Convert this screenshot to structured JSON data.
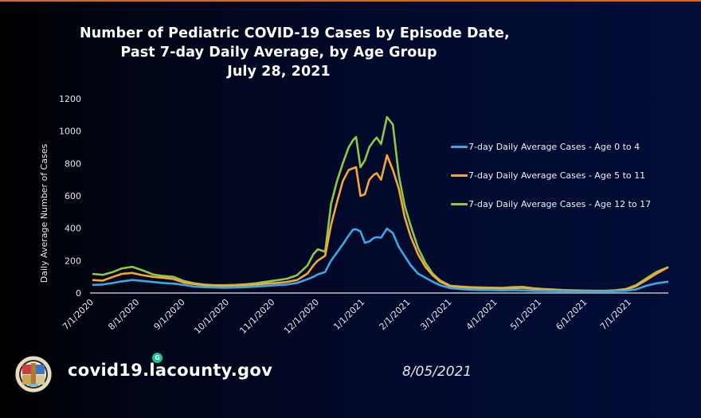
{
  "slide": {
    "footer_url": "covid19.lacounty.gov",
    "footer_date": "8/05/2021",
    "badge_letter": "G",
    "logo": "la-county-seal-icon"
  },
  "colors": {
    "age_0_4": "#3aa8e8",
    "age_5_11": "#f4a636",
    "age_12_17": "#8fc74a",
    "accent_rule": "#d2692a"
  },
  "chart_data": {
    "type": "line",
    "title": [
      "Number of Pediatric COVID-19 Cases by Episode Date,",
      "Past 7-day Daily Average, by Age Group",
      "July 28, 2021"
    ],
    "xlabel": "",
    "ylabel": "Daily Average Number of Cases",
    "ylim": [
      0,
      1200
    ],
    "yticks": [
      0,
      200,
      400,
      600,
      800,
      1000,
      1200
    ],
    "xlim": [
      "2020-07-01",
      "2021-07-27"
    ],
    "xticks": [
      {
        "date": "2020-07-01",
        "label": "7/1/2020"
      },
      {
        "date": "2020-08-01",
        "label": "8/1/2020"
      },
      {
        "date": "2020-09-01",
        "label": "9/1/2020"
      },
      {
        "date": "2020-10-01",
        "label": "10/1/2020"
      },
      {
        "date": "2020-11-01",
        "label": "11/1/2020"
      },
      {
        "date": "2020-12-01",
        "label": "12/1/2020"
      },
      {
        "date": "2021-01-01",
        "label": "1/1/2021"
      },
      {
        "date": "2021-02-01",
        "label": "2/1/2021"
      },
      {
        "date": "2021-03-01",
        "label": "3/1/2021"
      },
      {
        "date": "2021-04-01",
        "label": "4/1/2021"
      },
      {
        "date": "2021-05-01",
        "label": "5/1/2021"
      },
      {
        "date": "2021-06-01",
        "label": "6/1/2021"
      },
      {
        "date": "2021-07-01",
        "label": "7/1/2021"
      }
    ],
    "grid": false,
    "legend_position": "right",
    "x": [
      "2020-07-01",
      "2020-07-08",
      "2020-07-15",
      "2020-07-21",
      "2020-07-28",
      "2020-08-04",
      "2020-08-11",
      "2020-08-18",
      "2020-08-25",
      "2020-09-01",
      "2020-09-08",
      "2020-09-15",
      "2020-09-22",
      "2020-09-29",
      "2020-10-06",
      "2020-10-13",
      "2020-10-20",
      "2020-10-27",
      "2020-11-03",
      "2020-11-10",
      "2020-11-17",
      "2020-11-24",
      "2020-11-28",
      "2020-12-01",
      "2020-12-06",
      "2020-12-10",
      "2020-12-14",
      "2020-12-18",
      "2020-12-22",
      "2020-12-25",
      "2020-12-27",
      "2020-12-30",
      "2021-01-02",
      "2021-01-05",
      "2021-01-08",
      "2021-01-10",
      "2021-01-13",
      "2021-01-17",
      "2021-01-21",
      "2021-01-25",
      "2021-01-29",
      "2021-02-02",
      "2021-02-07",
      "2021-02-12",
      "2021-02-17",
      "2021-02-22",
      "2021-03-01",
      "2021-03-08",
      "2021-03-15",
      "2021-03-22",
      "2021-03-29",
      "2021-04-05",
      "2021-04-12",
      "2021-04-19",
      "2021-04-26",
      "2021-05-03",
      "2021-05-10",
      "2021-05-17",
      "2021-05-24",
      "2021-05-31",
      "2021-06-07",
      "2021-06-14",
      "2021-06-21",
      "2021-06-28",
      "2021-07-05",
      "2021-07-12",
      "2021-07-19",
      "2021-07-27"
    ],
    "series": [
      {
        "name": "7-day Daily Average Cases - Age 0 to 4",
        "color_key": "age_0_4",
        "values": [
          50,
          52,
          62,
          72,
          80,
          75,
          68,
          62,
          58,
          50,
          40,
          36,
          34,
          32,
          34,
          36,
          40,
          44,
          48,
          52,
          62,
          85,
          100,
          115,
          130,
          200,
          250,
          300,
          355,
          392,
          394,
          380,
          310,
          318,
          340,
          345,
          342,
          398,
          370,
          285,
          228,
          172,
          120,
          95,
          70,
          48,
          30,
          24,
          20,
          18,
          18,
          16,
          18,
          16,
          14,
          13,
          12,
          11,
          10,
          10,
          10,
          10,
          12,
          14,
          22,
          45,
          60,
          70
        ]
      },
      {
        "name": "7-day Daily Average Cases - Age 5 to 11",
        "color_key": "age_5_11",
        "values": [
          80,
          76,
          100,
          118,
          124,
          110,
          100,
          94,
          86,
          65,
          55,
          48,
          42,
          42,
          44,
          48,
          52,
          58,
          62,
          68,
          80,
          120,
          170,
          200,
          230,
          420,
          560,
          690,
          760,
          770,
          777,
          600,
          610,
          700,
          730,
          740,
          700,
          851,
          760,
          645,
          470,
          350,
          240,
          162,
          110,
          70,
          42,
          36,
          32,
          30,
          30,
          28,
          30,
          32,
          26,
          22,
          18,
          16,
          14,
          13,
          12,
          12,
          14,
          20,
          42,
          80,
          120,
          160
        ]
      },
      {
        "name": "7-day Daily Average Cases - Age 12 to 17",
        "color_key": "age_12_17",
        "values": [
          118,
          112,
          130,
          152,
          162,
          140,
          115,
          105,
          100,
          75,
          60,
          52,
          48,
          48,
          50,
          54,
          60,
          70,
          78,
          88,
          110,
          170,
          240,
          270,
          255,
          550,
          690,
          800,
          900,
          945,
          964,
          777,
          820,
          900,
          940,
          960,
          920,
          1087,
          1040,
          728,
          540,
          418,
          280,
          187,
          120,
          78,
          45,
          40,
          36,
          34,
          33,
          32,
          36,
          38,
          30,
          25,
          22,
          18,
          16,
          15,
          14,
          14,
          17,
          24,
          48,
          90,
          130,
          160
        ]
      }
    ]
  }
}
